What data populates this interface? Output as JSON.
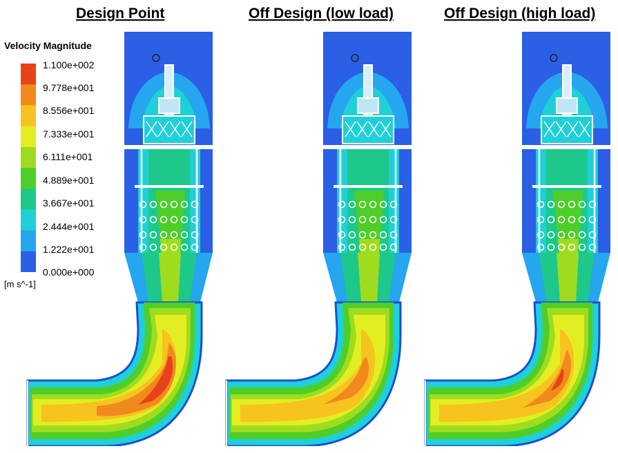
{
  "titles": {
    "design_point": "Design Point",
    "off_low": "Off Design (low load)",
    "off_high": "Off Design (high load)"
  },
  "legend": {
    "title": "Velocity Magnitude",
    "unit": "[m s^-1]",
    "ticks": [
      "1.100e+002",
      "9.778e+001",
      "8.556e+001",
      "7.333e+001",
      "6.111e+001",
      "4.889e+001",
      "3.667e+001",
      "2.444e+001",
      "1.222e+001",
      "0.000e+000"
    ],
    "colors": [
      "#e8421a",
      "#f08a1c",
      "#f7c31f",
      "#e3ee22",
      "#9fdc1f",
      "#4fce2a",
      "#1ec88a",
      "#1fd0d8",
      "#25a6ee",
      "#2a5fe6"
    ]
  },
  "colors": {
    "background_blue": "#2255e0",
    "wall": "#ffffff",
    "outline": "#222222"
  }
}
